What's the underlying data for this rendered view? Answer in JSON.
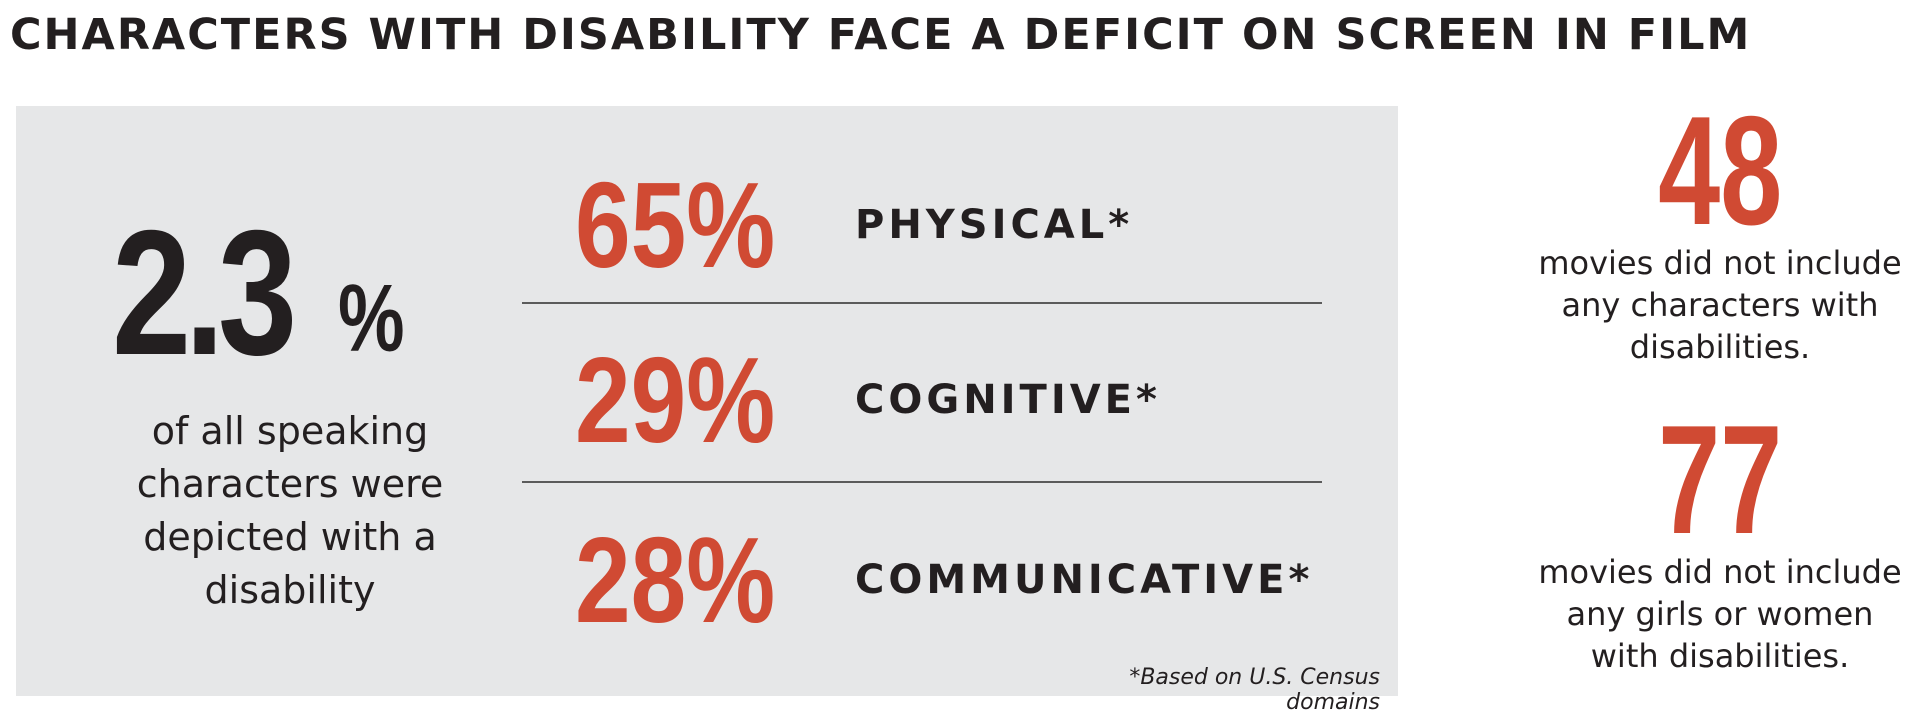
{
  "title": "CHARACTERS WITH DISABILITY FACE A DEFICIT ON SCREEN IN FILM",
  "main_stat": {
    "value": "2.3",
    "unit": "%",
    "caption_lines": [
      "of all speaking",
      "characters were",
      "depicted with a",
      "disability"
    ]
  },
  "breakdown": [
    {
      "percent": "65%",
      "label": "PHYSICAL*"
    },
    {
      "percent": "29%",
      "label": "COGNITIVE*"
    },
    {
      "percent": "28%",
      "label": "COMMUNICATIVE*"
    }
  ],
  "footnote": "*Based on U.S. Census domains",
  "side_stats": [
    {
      "value": "48",
      "text_lines": [
        "movies did not include",
        "any characters with",
        "disabilities."
      ]
    },
    {
      "value": "77",
      "text_lines": [
        "movies did not include",
        "any girls or women",
        "with disabilities."
      ]
    }
  ],
  "colors": {
    "accent": "#d04a33",
    "text": "#231f20",
    "panel": "#e6e7e8"
  }
}
